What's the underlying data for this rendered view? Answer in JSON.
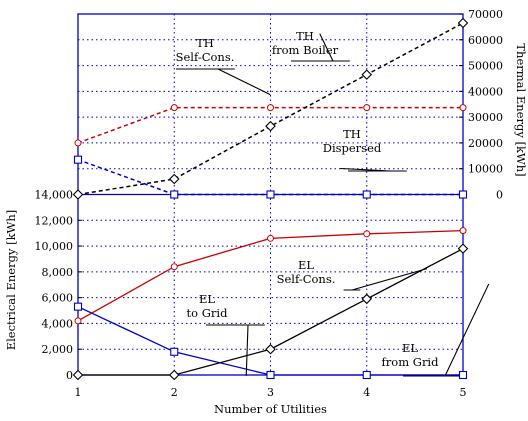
{
  "chart_data": {
    "type": "line",
    "x": [
      1,
      2,
      3,
      4,
      5
    ],
    "xlabel": "Number of Utilities",
    "xlim": [
      1,
      5
    ],
    "y_left": {
      "label": "Electrical Energy [kWh]",
      "range": [
        0,
        14000
      ],
      "ticks": [
        "0",
        "2,000",
        "4,000",
        "6,000",
        "8,000",
        "10,000",
        "12,000",
        "14,000"
      ]
    },
    "y_right": {
      "label": "Thermal Energy [kWh]",
      "range": [
        0,
        70000
      ],
      "ticks": [
        "0",
        "10000",
        "20000",
        "30000",
        "40000",
        "50000",
        "60000",
        "70000"
      ]
    },
    "grid": true,
    "series": [
      {
        "key": "el_self",
        "axis": "left",
        "color": "#cc0000",
        "dash": "solid",
        "marker": "circle",
        "values": [
          4200,
          8400,
          10600,
          10950,
          11200
        ],
        "callout": [
          "EL",
          "Self-Cons."
        ]
      },
      {
        "key": "el_grid_to",
        "axis": "left",
        "color": "#0000cc",
        "dash": "solid",
        "marker": "square",
        "values": [
          5300,
          1800,
          0,
          0,
          0
        ],
        "callout": [
          "EL",
          "to Grid"
        ]
      },
      {
        "key": "el_grid_from",
        "axis": "left",
        "color": "#000000",
        "dash": "solid",
        "marker": "diamond",
        "values": [
          0,
          0,
          2000,
          5900,
          9800
        ],
        "callout": [
          "EL",
          "from Grid"
        ]
      },
      {
        "key": "th_self",
        "axis": "right",
        "color": "#cc0000",
        "dash": "dashed",
        "marker": "circle",
        "values": [
          20000,
          33700,
          33700,
          33700,
          33700
        ],
        "callout": [
          "TH",
          "Self-Cons."
        ]
      },
      {
        "key": "th_boiler",
        "axis": "right",
        "color": "#000000",
        "dash": "dashed",
        "marker": "diamond",
        "values": [
          0,
          6000,
          26500,
          46500,
          66500
        ],
        "callout": [
          "TH",
          "from Boiler"
        ]
      },
      {
        "key": "th_dispersed",
        "axis": "right",
        "color": "#0000cc",
        "dash": "dashed",
        "marker": "square",
        "values": [
          13500,
          0,
          0,
          0,
          0
        ],
        "callout": [
          "TH",
          "Dispersed"
        ]
      }
    ]
  }
}
